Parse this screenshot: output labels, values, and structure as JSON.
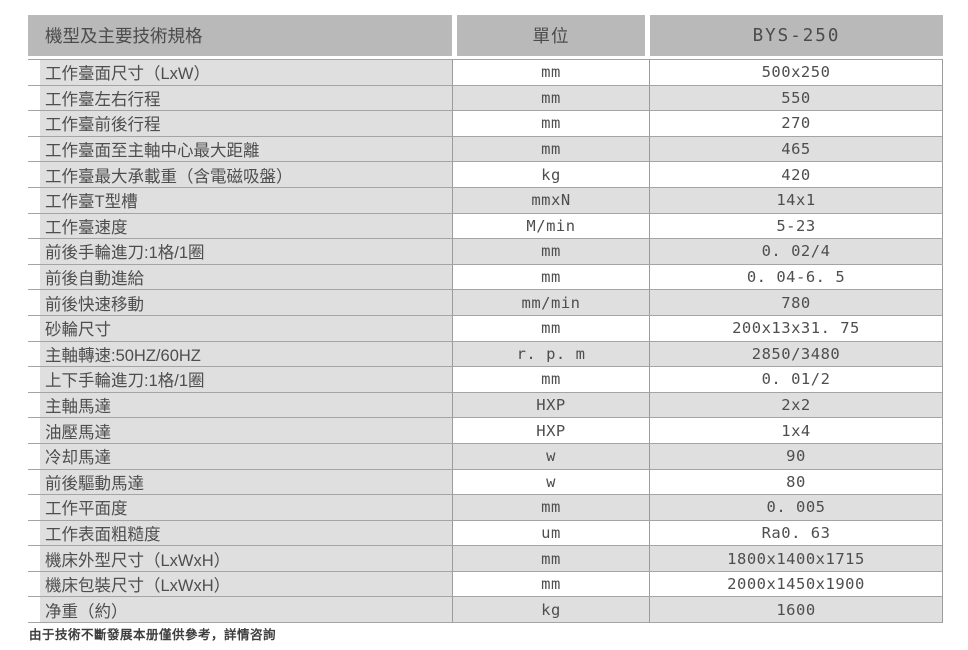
{
  "colors": {
    "page_bg": "#ffffff",
    "header_bg": "#b9b9b9",
    "header_text": "#4b4b4b",
    "label_bg": "#dfdfdf",
    "alt_bg": "#dfdfdf",
    "line": "#a4a4a4",
    "line_dark": "#9b9b9b",
    "cell_text": "#4e4e4e",
    "footnote_text": "#3e3e3e"
  },
  "table": {
    "headers": [
      "機型及主要技術規格",
      "單位",
      "BYS-250"
    ],
    "rows": [
      {
        "label": "工作臺面尺寸（LxW）",
        "unit": "mm",
        "value": "500x250"
      },
      {
        "label": "工作臺左右行程",
        "unit": "mm",
        "value": "550"
      },
      {
        "label": "工作臺前後行程",
        "unit": "mm",
        "value": "270"
      },
      {
        "label": "工作臺面至主軸中心最大距離",
        "unit": "mm",
        "value": "465"
      },
      {
        "label": "工作臺最大承載重（含電磁吸盤）",
        "unit": "kg",
        "value": "420"
      },
      {
        "label": "工作臺T型槽",
        "unit": "mmxN",
        "value": "14x1"
      },
      {
        "label": "工作臺速度",
        "unit": "M/min",
        "value": "5-23"
      },
      {
        "label": "前後手輪進刀:1格/1圈",
        "unit": "mm",
        "value": "0. 02/4"
      },
      {
        "label": "前後自動進給",
        "unit": "mm",
        "value": "0. 04-6. 5"
      },
      {
        "label": "前後快速移動",
        "unit": "mm/min",
        "value": "780"
      },
      {
        "label": "砂輪尺寸",
        "unit": "mm",
        "value": "200x13x31. 75"
      },
      {
        "label": "主軸轉速:50HZ/60HZ",
        "unit": "r. p. m",
        "value": "2850/3480"
      },
      {
        "label": "上下手輪進刀:1格/1圈",
        "unit": "mm",
        "value": "0. 01/2"
      },
      {
        "label": "主軸馬達",
        "unit": "HXP",
        "value": "2x2"
      },
      {
        "label": "油壓馬達",
        "unit": "HXP",
        "value": "1x4"
      },
      {
        "label": "冷却馬達",
        "unit": "w",
        "value": "90"
      },
      {
        "label": "前後驅動馬達",
        "unit": "w",
        "value": "80"
      },
      {
        "label": "工作平面度",
        "unit": "mm",
        "value": "0. 005"
      },
      {
        "label": "工作表面粗糙度",
        "unit": "um",
        "value": "Ra0. 63"
      },
      {
        "label": "機床外型尺寸（LxWxH）",
        "unit": "mm",
        "value": "1800x1400x1715"
      },
      {
        "label": "機床包裝尺寸（LxWxH）",
        "unit": "mm",
        "value": "2000x1450x1900"
      },
      {
        "label": "净重（約）",
        "unit": "kg",
        "value": "1600"
      }
    ]
  },
  "footer": {
    "note": "由于技術不斷發展本册僅供參考，詳情咨詢"
  }
}
